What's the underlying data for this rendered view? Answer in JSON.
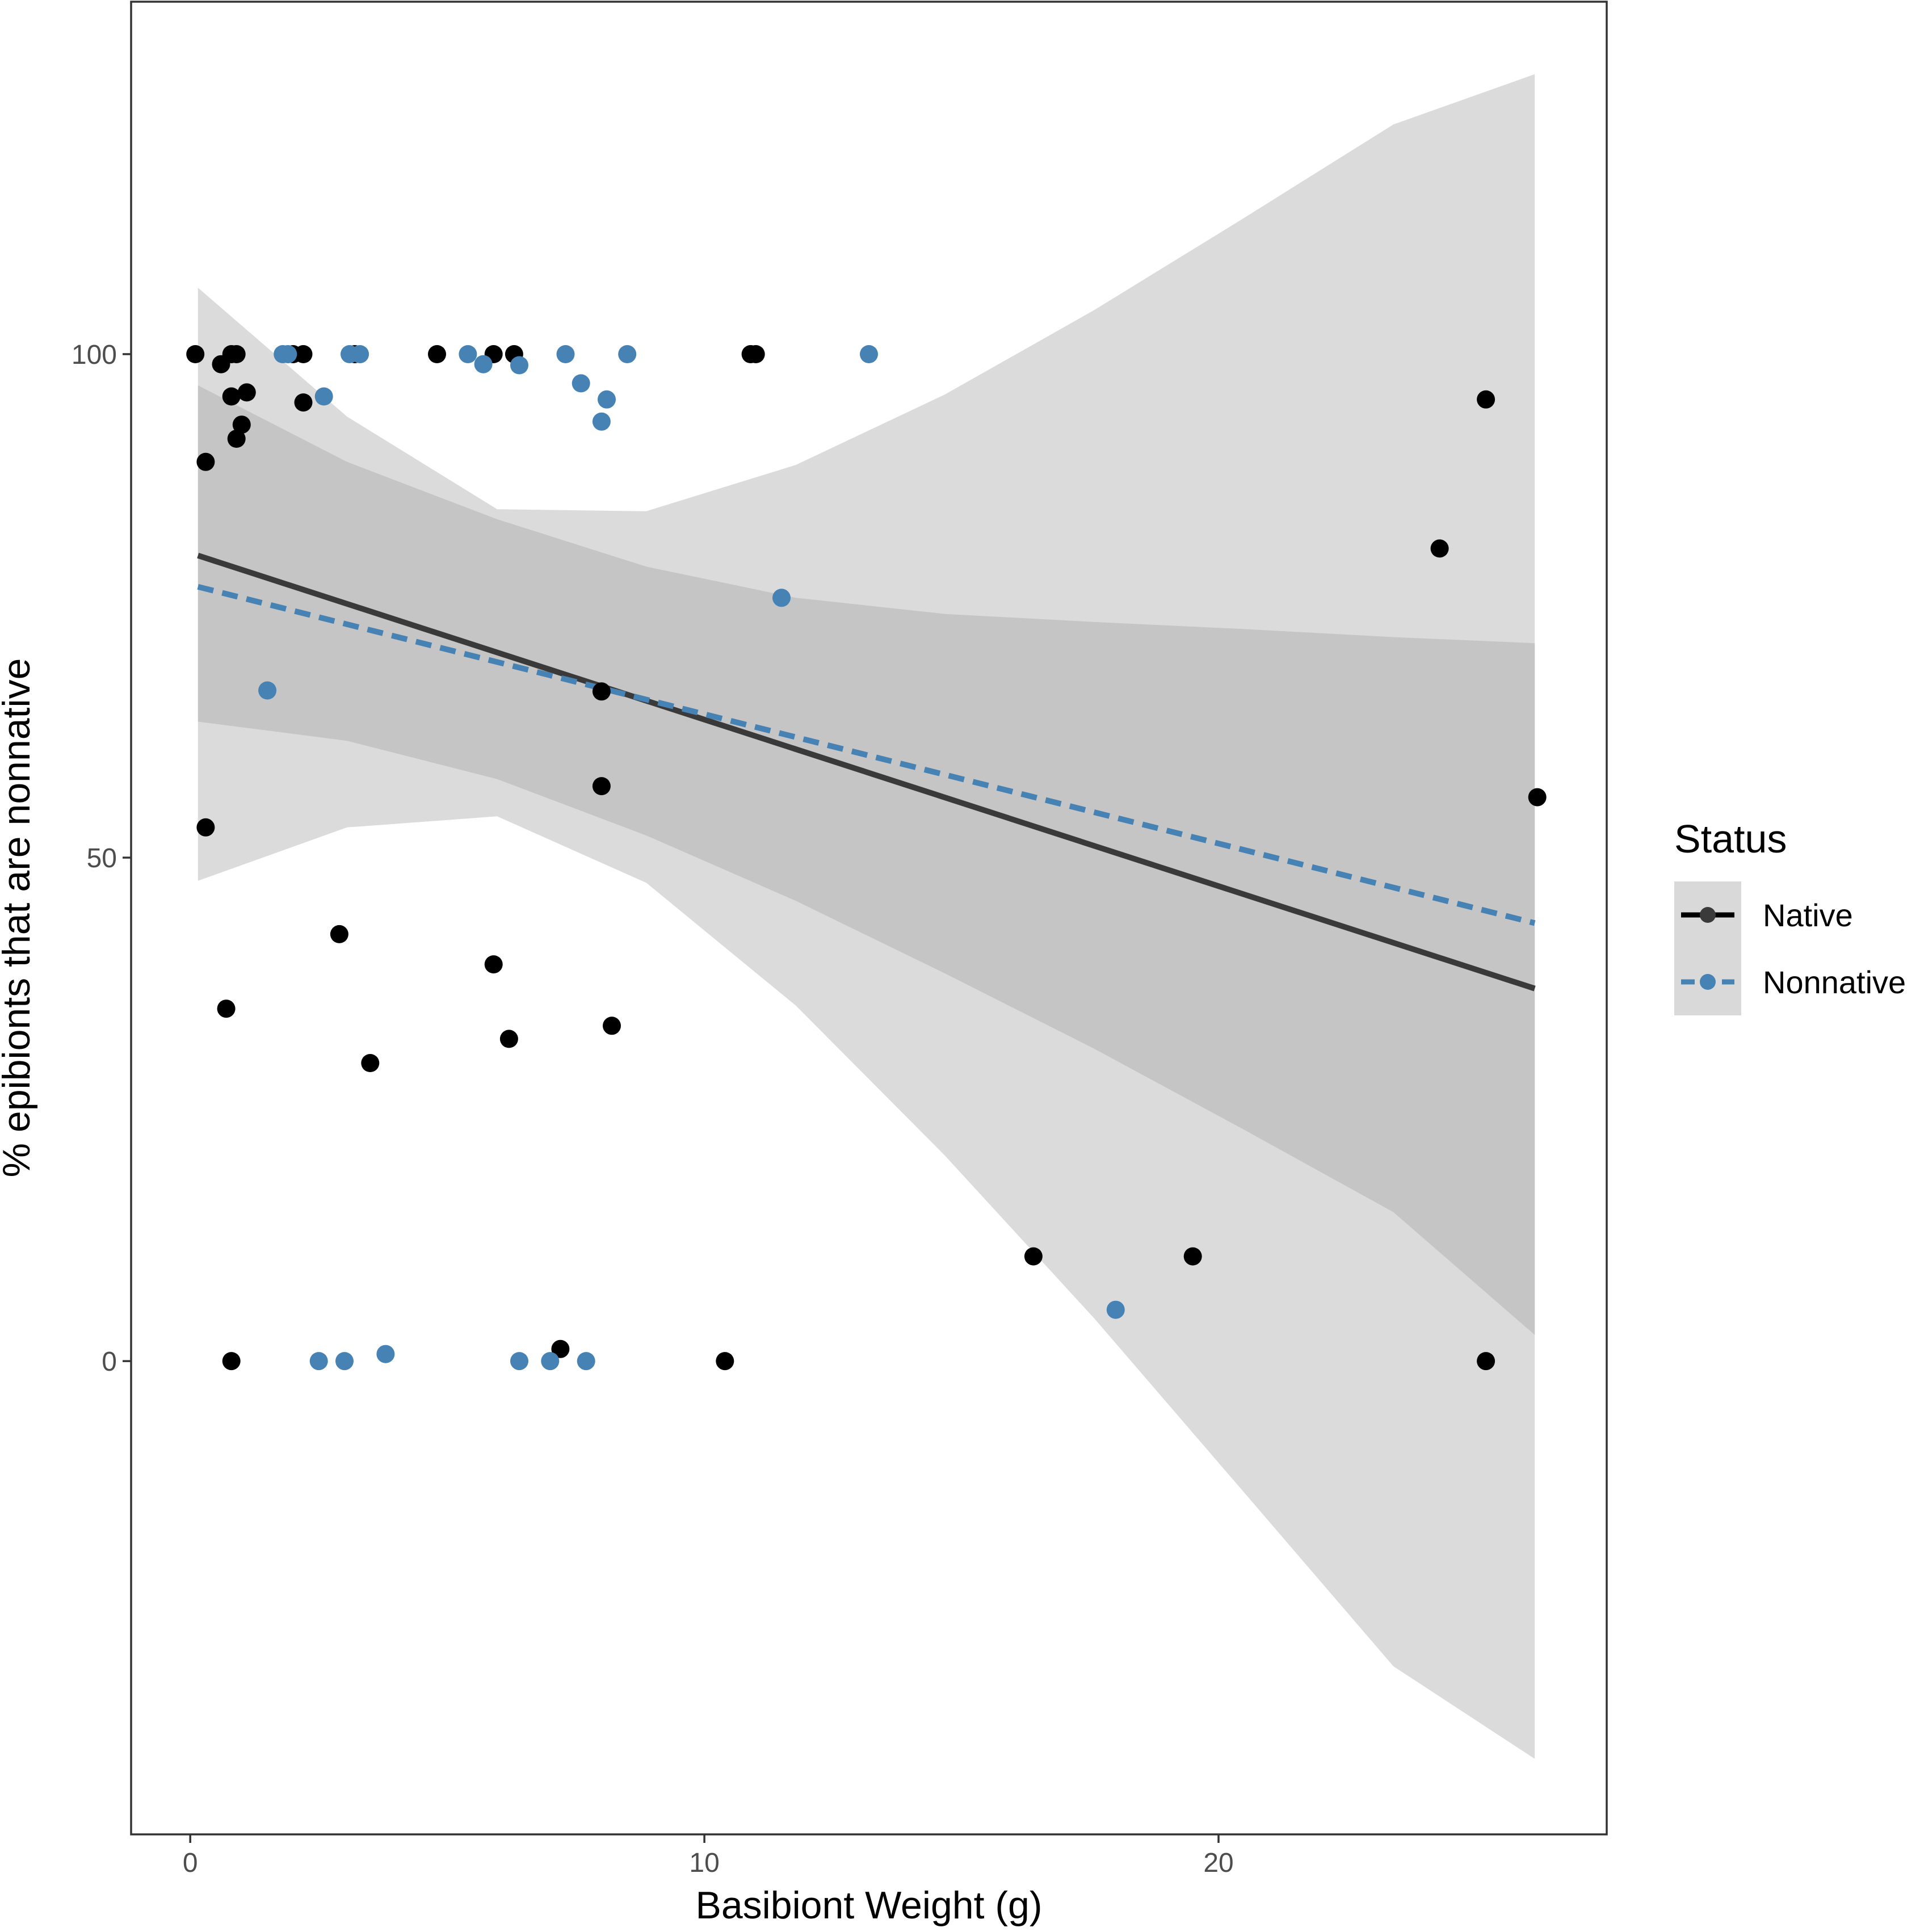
{
  "chart_data": {
    "type": "scatter",
    "title": "",
    "xlabel": "Basibiont Weight (g)",
    "ylabel": "% epibionts that are nonnative",
    "xlim": [
      -1.15,
      27.55
    ],
    "ylim": [
      -47,
      135
    ],
    "x_ticks": [
      0,
      10,
      20
    ],
    "y_ticks": [
      0,
      50,
      100
    ],
    "x_tick_labels": [
      "0",
      "10",
      "20"
    ],
    "y_tick_labels": [
      "0",
      "50",
      "100"
    ],
    "grid": false,
    "legend": {
      "title": "Status",
      "position": "right",
      "entries": [
        {
          "label": "Native",
          "color": "#000000",
          "line_color": "#000000"
        },
        {
          "label": "Nonnative",
          "color": "#4682b4",
          "line_color": "#4682b4"
        }
      ]
    },
    "ribbons": [
      {
        "name": "Native 95% CI",
        "color": "#a6a6a6",
        "x": [
          0.15,
          3.05,
          5.97,
          8.87,
          11.78,
          14.68,
          17.59,
          20.49,
          23.4,
          26.15
        ],
        "lower": [
          47.7,
          53.0,
          54.1,
          47.5,
          35.3,
          20.4,
          4.2,
          -13.0,
          -30.3,
          -39.5
        ],
        "upper": [
          106.6,
          93.8,
          84.6,
          84.4,
          89.0,
          96.0,
          104.4,
          113.5,
          122.8,
          127.8
        ]
      },
      {
        "name": "Nonnative 95% CI",
        "color": "#a6a6a6",
        "x": [
          0.15,
          3.05,
          5.97,
          8.87,
          11.78,
          14.68,
          17.59,
          20.49,
          23.4,
          26.15
        ],
        "lower": [
          63.5,
          61.6,
          57.8,
          52.2,
          45.7,
          38.5,
          31.0,
          23.0,
          14.8,
          2.6
        ],
        "upper": [
          96.9,
          89.3,
          83.6,
          78.9,
          75.8,
          74.2,
          73.4,
          72.7,
          71.9,
          71.3
        ]
      }
    ],
    "series": [
      {
        "name": "Native",
        "color": "#000000",
        "fit_line": {
          "x": [
            0.15,
            26.15
          ],
          "y": [
            80.0,
            37.0
          ],
          "dash": "solid",
          "color": "#3a3a3a"
        },
        "points": [
          {
            "x": 0.1,
            "y": 100
          },
          {
            "x": 0.8,
            "y": 100
          },
          {
            "x": 0.9,
            "y": 100
          },
          {
            "x": 2.0,
            "y": 100
          },
          {
            "x": 2.2,
            "y": 100
          },
          {
            "x": 3.2,
            "y": 100
          },
          {
            "x": 4.8,
            "y": 100
          },
          {
            "x": 5.9,
            "y": 100
          },
          {
            "x": 6.3,
            "y": 100
          },
          {
            "x": 10.9,
            "y": 100
          },
          {
            "x": 11.0,
            "y": 100
          },
          {
            "x": 0.6,
            "y": 99
          },
          {
            "x": 1.1,
            "y": 96.2
          },
          {
            "x": 0.8,
            "y": 95.8
          },
          {
            "x": 2.2,
            "y": 95.2
          },
          {
            "x": 1.0,
            "y": 93.0
          },
          {
            "x": 0.9,
            "y": 91.6
          },
          {
            "x": 0.3,
            "y": 89.3
          },
          {
            "x": 24.3,
            "y": 80.7
          },
          {
            "x": 25.2,
            "y": 95.5
          },
          {
            "x": 26.2,
            "y": 56.0
          },
          {
            "x": 8.0,
            "y": 57.1
          },
          {
            "x": 8.0,
            "y": 66.5
          },
          {
            "x": 0.3,
            "y": 53.0
          },
          {
            "x": 2.9,
            "y": 42.4
          },
          {
            "x": 5.9,
            "y": 39.4
          },
          {
            "x": 0.7,
            "y": 35.0
          },
          {
            "x": 8.2,
            "y": 33.3
          },
          {
            "x": 6.2,
            "y": 32.0
          },
          {
            "x": 3.5,
            "y": 29.6
          },
          {
            "x": 16.4,
            "y": 10.4
          },
          {
            "x": 19.5,
            "y": 10.4
          },
          {
            "x": 7.2,
            "y": 1.2
          },
          {
            "x": 0.8,
            "y": 0
          },
          {
            "x": 10.4,
            "y": 0
          },
          {
            "x": 25.2,
            "y": 0
          }
        ]
      },
      {
        "name": "Nonnative",
        "color": "#4682b4",
        "fit_line": {
          "x": [
            0.15,
            26.15
          ],
          "y": [
            76.9,
            43.5
          ],
          "dash": "dashed",
          "color": "#4682b4"
        },
        "points": [
          {
            "x": 1.8,
            "y": 100
          },
          {
            "x": 1.9,
            "y": 100
          },
          {
            "x": 3.1,
            "y": 100
          },
          {
            "x": 3.3,
            "y": 100
          },
          {
            "x": 5.4,
            "y": 100
          },
          {
            "x": 7.3,
            "y": 100
          },
          {
            "x": 8.5,
            "y": 100
          },
          {
            "x": 13.2,
            "y": 100
          },
          {
            "x": 5.7,
            "y": 99.0
          },
          {
            "x": 6.4,
            "y": 98.9
          },
          {
            "x": 7.6,
            "y": 97.1
          },
          {
            "x": 2.6,
            "y": 95.8
          },
          {
            "x": 8.1,
            "y": 95.5
          },
          {
            "x": 8.0,
            "y": 93.3
          },
          {
            "x": 11.5,
            "y": 75.8
          },
          {
            "x": 1.5,
            "y": 66.6
          },
          {
            "x": 18.0,
            "y": 5.1
          },
          {
            "x": 3.8,
            "y": 0.7
          },
          {
            "x": 2.5,
            "y": 0
          },
          {
            "x": 3.0,
            "y": 0
          },
          {
            "x": 6.4,
            "y": 0
          },
          {
            "x": 7.0,
            "y": 0
          },
          {
            "x": 7.7,
            "y": 0
          }
        ]
      }
    ]
  }
}
